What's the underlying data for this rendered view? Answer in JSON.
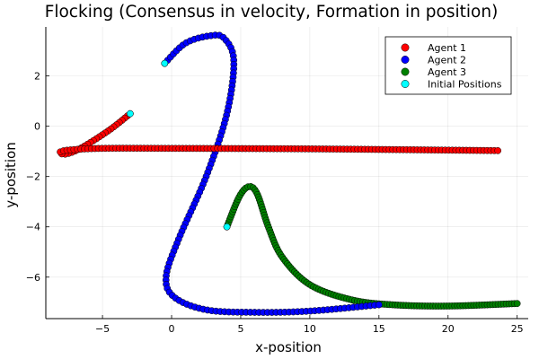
{
  "chart_data": {
    "type": "scatter",
    "title": "Flocking (Consensus in velocity, Formation in position)",
    "xlabel": "x-position",
    "ylabel": "y-position",
    "xlim": [
      -9.1,
      25.8
    ],
    "ylim": [
      -7.65,
      3.95
    ],
    "xticks": [
      -5,
      0,
      5,
      10,
      15,
      20,
      25
    ],
    "yticks": [
      -6,
      -4,
      -2,
      0,
      2
    ],
    "xtick_labels": [
      "−5",
      "0",
      "5",
      "10",
      "15",
      "20",
      "25"
    ],
    "ytick_labels": [
      "−6",
      "−4",
      "−2",
      "0",
      "2"
    ],
    "grid": true,
    "legend_position": "top-right",
    "series": [
      {
        "name": "Agent 1",
        "color": "#ff0000",
        "anchors": [
          [
            -3.0,
            0.5
          ],
          [
            -4.5,
            -0.15
          ],
          [
            -6.5,
            -0.85
          ],
          [
            -7.6,
            -1.1
          ],
          [
            -8.1,
            -1.05
          ],
          [
            -7.5,
            -0.95
          ],
          [
            -5.0,
            -0.88
          ],
          [
            0.0,
            -0.88
          ],
          [
            10.0,
            -0.9
          ],
          [
            20.0,
            -0.95
          ],
          [
            23.6,
            -0.97
          ]
        ],
        "count": 150
      },
      {
        "name": "Agent 2",
        "color": "#0000ff",
        "anchors": [
          [
            -0.5,
            2.5
          ],
          [
            1.0,
            3.3
          ],
          [
            2.8,
            3.6
          ],
          [
            3.8,
            3.5
          ],
          [
            4.5,
            2.6
          ],
          [
            4.0,
            0.5
          ],
          [
            2.5,
            -2.0
          ],
          [
            0.5,
            -4.5
          ],
          [
            -0.4,
            -6.0
          ],
          [
            0.2,
            -6.8
          ],
          [
            2.5,
            -7.3
          ],
          [
            6.0,
            -7.4
          ],
          [
            10.0,
            -7.35
          ],
          [
            15.0,
            -7.1
          ]
        ],
        "count": 130
      },
      {
        "name": "Agent 3",
        "color": "#008000",
        "anchors": [
          [
            4.0,
            -4.0
          ],
          [
            4.9,
            -2.8
          ],
          [
            5.6,
            -2.4
          ],
          [
            6.2,
            -2.7
          ],
          [
            7.0,
            -4.0
          ],
          [
            8.0,
            -5.2
          ],
          [
            10.0,
            -6.3
          ],
          [
            13.0,
            -6.9
          ],
          [
            16.0,
            -7.1
          ],
          [
            20.0,
            -7.15
          ],
          [
            25.0,
            -7.05
          ]
        ],
        "count": 140
      },
      {
        "name": "Initial Positions",
        "color": "#00ffff",
        "x": [
          -3.0,
          -0.5,
          4.0
        ],
        "y": [
          0.5,
          2.5,
          -4.0
        ]
      }
    ]
  }
}
